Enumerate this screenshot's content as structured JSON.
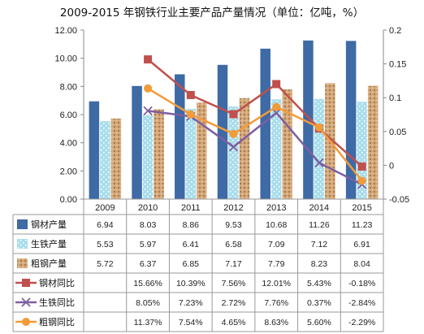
{
  "chart_data": {
    "type": "bar",
    "title": "2009-2015 年钢铁行业主要产品产量情况（单位：亿吨，%）",
    "categories": [
      "2009",
      "2010",
      "2011",
      "2012",
      "2013",
      "2014",
      "2015"
    ],
    "y_left": {
      "range": [
        0,
        12
      ],
      "ticks": [
        "0.00",
        "2.00",
        "4.00",
        "6.00",
        "8.00",
        "10.00",
        "12.00"
      ]
    },
    "y_right": {
      "range": [
        -0.05,
        0.2
      ],
      "ticks": [
        "-0.05",
        "0",
        "0.05",
        "0.1",
        "0.15",
        "0.2"
      ]
    },
    "bar_series": [
      {
        "name": "钢材产量",
        "color": "#3E6AA5",
        "values": [
          6.94,
          8.03,
          8.86,
          9.53,
          10.68,
          11.26,
          11.23
        ],
        "labels": [
          "6.94",
          "8.03",
          "8.86",
          "9.53",
          "10.68",
          "11.26",
          "11.23"
        ]
      },
      {
        "name": "生铁产量",
        "color": "#A9DDEB",
        "values": [
          5.53,
          5.97,
          6.41,
          6.58,
          7.09,
          7.12,
          6.91
        ],
        "labels": [
          "5.53",
          "5.97",
          "6.41",
          "6.58",
          "7.09",
          "7.12",
          "6.91"
        ]
      },
      {
        "name": "粗钢产量",
        "color": "#D2A677",
        "values": [
          5.72,
          6.37,
          6.85,
          7.17,
          7.79,
          8.23,
          8.04
        ],
        "labels": [
          "5.72",
          "6.37",
          "6.85",
          "7.17",
          "7.79",
          "8.23",
          "8.04"
        ]
      }
    ],
    "line_series": [
      {
        "name": "钢材同比",
        "color": "#C0504D",
        "marker": "square",
        "values": [
          null,
          0.1566,
          0.1039,
          0.0756,
          0.1201,
          0.0543,
          -0.0018
        ],
        "labels": [
          "",
          "15.66%",
          "10.39%",
          "7.56%",
          "12.01%",
          "5.43%",
          "-0.18%"
        ]
      },
      {
        "name": "生铁同比",
        "color": "#7D5FA0",
        "marker": "x",
        "values": [
          null,
          0.0805,
          0.0723,
          0.0272,
          0.0776,
          0.0037,
          -0.0284
        ],
        "labels": [
          "",
          "8.05%",
          "7.23%",
          "2.72%",
          "7.76%",
          "0.37%",
          "-2.84%"
        ]
      },
      {
        "name": "粗钢同比",
        "color": "#F29B38",
        "marker": "circle",
        "values": [
          null,
          0.1137,
          0.0754,
          0.0465,
          0.0863,
          0.056,
          -0.0229
        ],
        "labels": [
          "",
          "11.37%",
          "7.54%",
          "4.65%",
          "8.63%",
          "5.60%",
          "-2.29%"
        ]
      }
    ],
    "grid": false,
    "legend": "data-table-left"
  }
}
